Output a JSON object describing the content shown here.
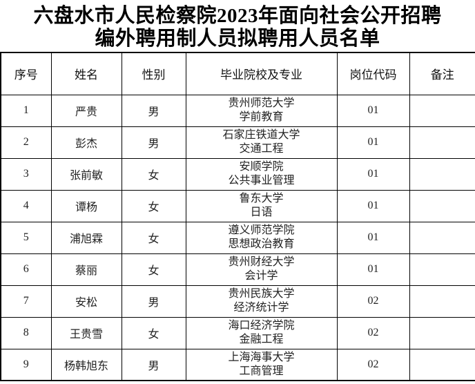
{
  "title": {
    "line1": "六盘水市人民检察院2023年面向社会公开招聘",
    "line2": "编外聘用制人员拟聘用人员名单"
  },
  "table": {
    "headers": {
      "no": "序号",
      "name": "姓名",
      "gender": "性别",
      "school_major": "毕业院校及专业",
      "position_code": "岗位代码",
      "remark": "备注"
    },
    "rows": [
      {
        "no": "1",
        "name": "严贵",
        "gender": "男",
        "school": "贵州师范大学",
        "major": "学前教育",
        "code": "01",
        "remark": ""
      },
      {
        "no": "2",
        "name": "彭杰",
        "gender": "男",
        "school": "石家庄铁道大学",
        "major": "交通工程",
        "code": "01",
        "remark": ""
      },
      {
        "no": "3",
        "name": "张前敏",
        "gender": "女",
        "school": "安顺学院",
        "major": "公共事业管理",
        "code": "01",
        "remark": ""
      },
      {
        "no": "4",
        "name": "谭杨",
        "gender": "女",
        "school": "鲁东大学",
        "major": "日语",
        "code": "01",
        "remark": ""
      },
      {
        "no": "5",
        "name": "浦旭霖",
        "gender": "女",
        "school": "遵义师范学院",
        "major": "思想政治教育",
        "code": "01",
        "remark": ""
      },
      {
        "no": "6",
        "name": "蔡丽",
        "gender": "女",
        "school": "贵州财经大学",
        "major": "会计学",
        "code": "01",
        "remark": ""
      },
      {
        "no": "7",
        "name": "安松",
        "gender": "男",
        "school": "贵州民族大学",
        "major": "经济统计学",
        "code": "02",
        "remark": ""
      },
      {
        "no": "8",
        "name": "王贵雪",
        "gender": "女",
        "school": "海口经济学院",
        "major": "金融工程",
        "code": "02",
        "remark": ""
      },
      {
        "no": "9",
        "name": "杨韩旭东",
        "gender": "男",
        "school": "上海海事大学",
        "major": "工商管理",
        "code": "02",
        "remark": ""
      }
    ],
    "colors": {
      "border": "#000000",
      "text": "#222222",
      "background": "#ffffff"
    }
  }
}
